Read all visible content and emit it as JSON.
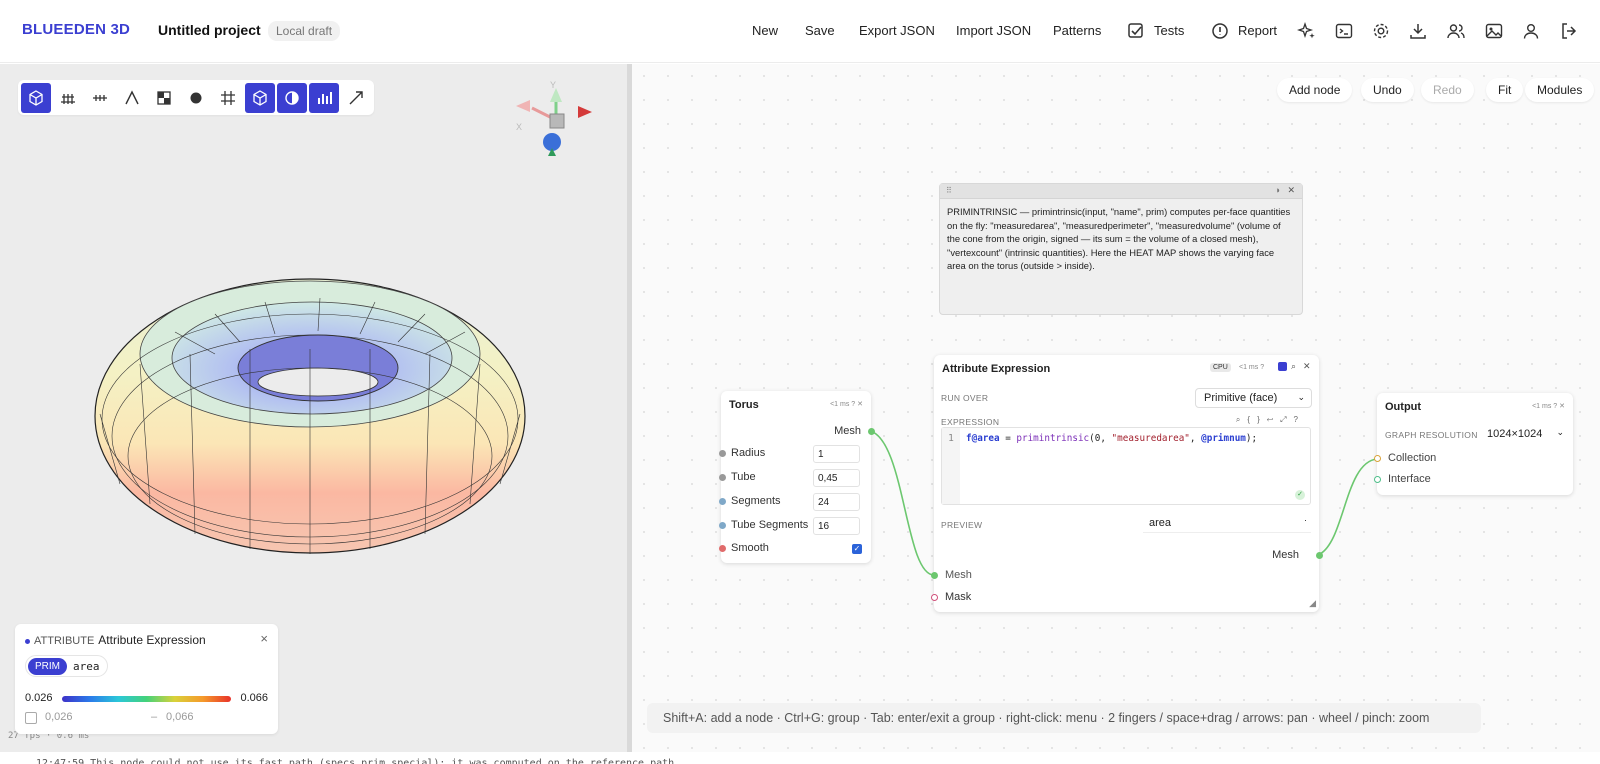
{
  "app": {
    "brand": "BLUEEDEN 3D",
    "project": "Untitled project",
    "draft_badge": "Local draft"
  },
  "menu": {
    "new": "New",
    "save": "Save",
    "export": "Export JSON",
    "import": "Import JSON",
    "patterns": "Patterns",
    "tests": "Tests",
    "report": "Report"
  },
  "toolbar_icons": [
    "cube-shaded-icon",
    "ground-grid-icon",
    "axis-ticks-icon",
    "wireframe-icon",
    "checker-icon",
    "sphere-icon",
    "grid-icon",
    "cube-wire-icon",
    "half-contrast-icon",
    "bar-chart-icon",
    "arrow-diagonal-icon"
  ],
  "viewport": {
    "fps": "27 fps · 0.6 ms"
  },
  "attr_panel": {
    "kind": "ATTRIBUTE",
    "title": "Attribute Expression",
    "close": "×",
    "class_badge": "PRIM",
    "attr_name": "area",
    "min": "0.026",
    "max": "0.066",
    "range_min": "0,026",
    "range_dash": "–",
    "range_max": "0,066"
  },
  "graph_buttons": {
    "add_node": "Add node",
    "undo": "Undo",
    "redo": "Redo",
    "fit": "Fit",
    "modules": "Modules"
  },
  "note": {
    "text": "PRIMINTRINSIC — primintrinsic(input, \"name\", prim) computes per-face quantities on the fly: \"measuredarea\", \"measuredperimeter\", \"measuredvolume\" (volume of the cone from the origin, signed — its sum = the volume of a closed mesh), \"vertexcount\" (intrinsic quantities). Here the HEAT MAP shows the varying face area on the torus (outside > inside)."
  },
  "torus_node": {
    "title": "Torus",
    "meta": "<1 ms  ?  ✕",
    "out_mesh": "Mesh",
    "params": [
      {
        "label": "Radius",
        "value": "1"
      },
      {
        "label": "Tube",
        "value": "0,45"
      },
      {
        "label": "Segments",
        "value": "24"
      },
      {
        "label": "Tube Segments",
        "value": "16"
      }
    ],
    "smooth": "Smooth"
  },
  "attr_node": {
    "title": "Attribute Expression",
    "cpu": "CPU",
    "meta": "<1 ms  ?",
    "run_over_label": "RUN OVER",
    "run_over_value": "Primitive (face)",
    "expr_label": "EXPRESSION",
    "line_no": "1",
    "code": {
      "var": "f@area",
      "eq": " = ",
      "fn": "primintrinsic",
      "args_a": "(0, ",
      "str": "\"measuredarea\"",
      "args_b": ", ",
      "var2": "@primnum",
      "end": ");"
    },
    "preview_label": "PREVIEW",
    "preview_value": "area",
    "out_mesh": "Mesh",
    "in_mesh": "Mesh",
    "in_mask": "Mask"
  },
  "output_node": {
    "title": "Output",
    "meta": "<1 ms  ?  ✕",
    "res_label": "GRAPH RESOLUTION",
    "res_value": "1024×1024",
    "collection": "Collection",
    "interface": "Interface"
  },
  "hint": "Shift+A: add a node · Ctrl+G: group · Tab: enter/exit a group · right-click: menu · 2 fingers / space+drag / arrows: pan · wheel / pinch: zoom",
  "status": "12:47:59 This node could not use its fast path (specs.prim.special); it was computed on the reference path."
}
